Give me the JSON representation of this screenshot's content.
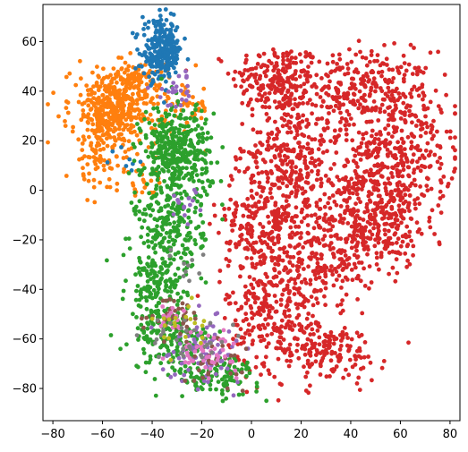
{
  "chart_data": {
    "type": "scatter",
    "title": "",
    "xlabel": "",
    "ylabel": "",
    "xlim": [
      -84,
      84
    ],
    "ylim": [
      -93,
      75
    ],
    "grid": false,
    "legend": "none",
    "x_ticks": [
      -80,
      -60,
      -40,
      -20,
      0,
      20,
      40,
      60,
      80
    ],
    "y_ticks": [
      60,
      40,
      20,
      0,
      -20,
      -40,
      -60,
      -80
    ],
    "x_tick_labels": [
      "−80",
      "−60",
      "−40",
      "−20",
      "0",
      "20",
      "40",
      "60",
      "80"
    ],
    "y_tick_labels": [
      "60",
      "40",
      "20",
      "0",
      "−20",
      "−40",
      "−60",
      "−80"
    ],
    "series": [
      {
        "color": "#d62728",
        "clusters": [
          {
            "cx": 10,
            "cy": 45,
            "sx": 9,
            "sy": 7,
            "n": 200
          },
          {
            "cx": 45,
            "cy": 40,
            "sx": 14,
            "sy": 8,
            "n": 300
          },
          {
            "cx": 62,
            "cy": 15,
            "sx": 10,
            "sy": 12,
            "n": 220
          },
          {
            "cx": 45,
            "cy": 0,
            "sx": 14,
            "sy": 14,
            "n": 350
          },
          {
            "cx": 15,
            "cy": 15,
            "sx": 8,
            "sy": 12,
            "n": 220
          },
          {
            "cx": 5,
            "cy": -15,
            "sx": 9,
            "sy": 15,
            "n": 300
          },
          {
            "cx": 30,
            "cy": -25,
            "sx": 10,
            "sy": 10,
            "n": 200
          },
          {
            "cx": 10,
            "cy": -50,
            "sx": 10,
            "sy": 12,
            "n": 250
          },
          {
            "cx": 30,
            "cy": -65,
            "sx": 12,
            "sy": 6,
            "n": 150
          },
          {
            "cx": 55,
            "cy": -15,
            "sx": 8,
            "sy": 8,
            "n": 120
          }
        ]
      },
      {
        "color": "#ff7f0e",
        "clusters": [
          {
            "cx": -55,
            "cy": 33,
            "sx": 9,
            "sy": 8,
            "n": 450
          },
          {
            "cx": -45,
            "cy": 45,
            "sx": 5,
            "sy": 3,
            "n": 60
          },
          {
            "cx": -62,
            "cy": 12,
            "sx": 5,
            "sy": 6,
            "n": 70
          },
          {
            "cx": -25,
            "cy": 33,
            "sx": 4,
            "sy": 5,
            "n": 40
          },
          {
            "cx": -45,
            "cy": 5,
            "sx": 5,
            "sy": 5,
            "n": 25
          }
        ]
      },
      {
        "color": "#1f77b4",
        "clusters": [
          {
            "cx": -36,
            "cy": 56,
            "sx": 4,
            "sy": 6,
            "n": 260
          },
          {
            "cx": -48,
            "cy": 15,
            "sx": 3,
            "sy": 4,
            "n": 8
          }
        ]
      },
      {
        "color": "#2ca02c",
        "clusters": [
          {
            "cx": -30,
            "cy": 15,
            "sx": 7,
            "sy": 10,
            "n": 400
          },
          {
            "cx": -33,
            "cy": -15,
            "sx": 7,
            "sy": 9,
            "n": 200
          },
          {
            "cx": -38,
            "cy": -40,
            "sx": 6,
            "sy": 8,
            "n": 150
          },
          {
            "cx": -32,
            "cy": -60,
            "sx": 8,
            "sy": 6,
            "n": 150
          },
          {
            "cx": -15,
            "cy": -75,
            "sx": 9,
            "sy": 4,
            "n": 120
          }
        ]
      },
      {
        "color": "#9467bd",
        "clusters": [
          {
            "cx": -20,
            "cy": -65,
            "sx": 8,
            "sy": 6,
            "n": 80
          },
          {
            "cx": -30,
            "cy": 40,
            "sx": 4,
            "sy": 4,
            "n": 25
          },
          {
            "cx": -25,
            "cy": -5,
            "sx": 4,
            "sy": 4,
            "n": 15
          }
        ]
      },
      {
        "color": "#8c564b",
        "clusters": [
          {
            "cx": -30,
            "cy": -50,
            "sx": 6,
            "sy": 4,
            "n": 40
          },
          {
            "cx": -15,
            "cy": -70,
            "sx": 6,
            "sy": 4,
            "n": 30
          }
        ]
      },
      {
        "color": "#e377c2",
        "clusters": [
          {
            "cx": -18,
            "cy": -65,
            "sx": 6,
            "sy": 4,
            "n": 50
          },
          {
            "cx": -32,
            "cy": -52,
            "sx": 4,
            "sy": 3,
            "n": 15
          }
        ]
      },
      {
        "color": "#7f7f7f",
        "clusters": [
          {
            "cx": -25,
            "cy": -60,
            "sx": 8,
            "sy": 5,
            "n": 30
          },
          {
            "cx": -28,
            "cy": -30,
            "sx": 4,
            "sy": 4,
            "n": 10
          }
        ]
      },
      {
        "color": "#bcbd22",
        "clusters": [
          {
            "cx": -30,
            "cy": -55,
            "sx": 6,
            "sy": 5,
            "n": 20
          }
        ]
      }
    ]
  }
}
